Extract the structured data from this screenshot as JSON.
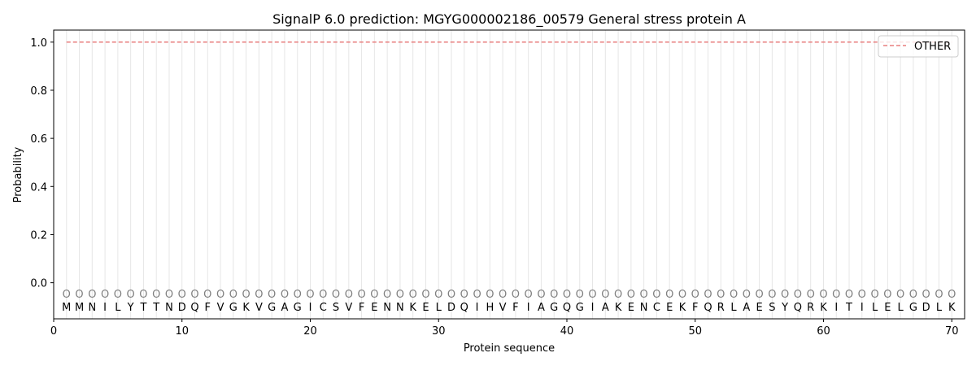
{
  "chart_data": {
    "type": "line",
    "title": "SignalP 6.0 prediction: MGYG000002186_00579 General stress protein A",
    "xlabel": "Protein sequence",
    "ylabel": "Probability",
    "xlim": [
      0,
      71
    ],
    "ylim": [
      -0.15,
      1.05
    ],
    "xticks": [
      0,
      10,
      20,
      30,
      40,
      50,
      60,
      70
    ],
    "yticks": [
      0.0,
      0.2,
      0.4,
      0.6,
      0.8,
      1.0
    ],
    "ytick_labels": [
      "0.0",
      "0.2",
      "0.4",
      "0.6",
      "0.8",
      "1.0"
    ],
    "legend": {
      "placement": "top-right"
    },
    "series": [
      {
        "name": "OTHER",
        "color": "#e87e7e",
        "style": "dashed",
        "x_start": 1,
        "x_end": 70,
        "value": 1.0
      }
    ],
    "sequence": [
      "M",
      "M",
      "N",
      "I",
      "L",
      "Y",
      "T",
      "T",
      "N",
      "D",
      "Q",
      "F",
      "V",
      "G",
      "K",
      "V",
      "G",
      "A",
      "G",
      "I",
      "C",
      "S",
      "V",
      "F",
      "E",
      "N",
      "N",
      "K",
      "E",
      "L",
      "D",
      "Q",
      "I",
      "H",
      "V",
      "F",
      "I",
      "A",
      "G",
      "Q",
      "G",
      "I",
      "A",
      "K",
      "E",
      "N",
      "C",
      "E",
      "K",
      "F",
      "Q",
      "R",
      "L",
      "A",
      "E",
      "S",
      "Y",
      "Q",
      "R",
      "K",
      "I",
      "T",
      "I",
      "L",
      "E",
      "L",
      "G",
      "D",
      "L",
      "K"
    ],
    "prediction_label": "O",
    "prediction_y": -0.045
  }
}
